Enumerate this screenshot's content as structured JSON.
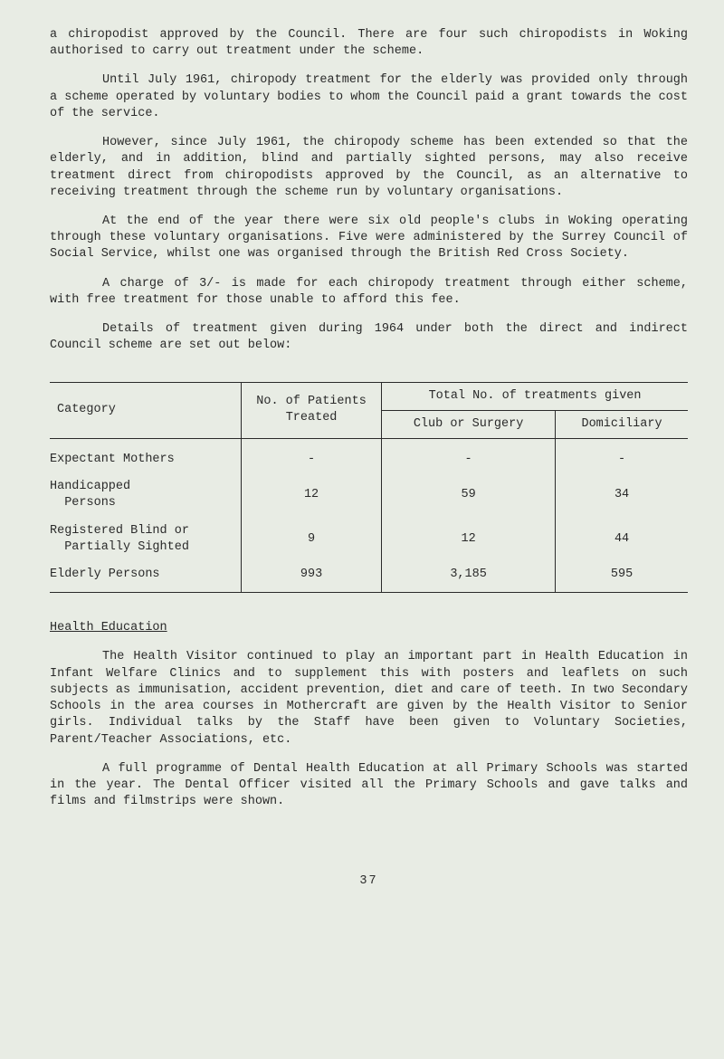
{
  "paragraphs": {
    "p1": "a chiropodist approved by the Council. There are four such chiropodists in Woking authorised to carry out treatment under the scheme.",
    "p2": "Until July 1961, chiropody treatment for the elderly was provided only through a scheme operated by voluntary bodies to whom the Council paid a grant towards the cost of the service.",
    "p3": "However, since July 1961, the chiropody scheme has been extended so that the elderly, and in addition, blind and partially sighted persons, may also receive treatment direct from chiropodists approved by the Council, as an alternative to receiving treatment through the scheme run by voluntary organisations.",
    "p4": "At the end of the year there were six old people's clubs in Woking operating through these voluntary organisations. Five were administered by the Surrey Council of Social Service, whilst one was organised through the British Red Cross Society.",
    "p5": "A charge of 3/- is made for each chiropody treatment through either scheme, with free treatment for those unable to afford this fee.",
    "p6": "Details of treatment given during 1964 under both the direct and indirect Council scheme are set out below:"
  },
  "table": {
    "header_category": "Category",
    "header_patients_l1": "No. of Patients",
    "header_patients_l2": "Treated",
    "header_total": "Total No. of treatments given",
    "header_club": "Club or Surgery",
    "header_dom": "Domiciliary",
    "rows": [
      {
        "cat": "Expectant Mothers",
        "num": "-",
        "cs": "-",
        "dom": "-"
      },
      {
        "cat_l1": "Handicapped",
        "cat_l2": "  Persons",
        "num": "12",
        "cs": "59",
        "dom": "34"
      },
      {
        "cat_l1": "Registered Blind or",
        "cat_l2": "  Partially Sighted",
        "num": "9",
        "cs": "12",
        "dom": "44"
      },
      {
        "cat": "Elderly Persons",
        "num": "993",
        "cs": "3,185",
        "dom": "595"
      }
    ]
  },
  "section_title": "Health Education",
  "paragraphs2": {
    "p7": "The Health Visitor continued to play an important part in Health Education in Infant Welfare Clinics and to supplement this with posters and leaflets on such subjects as immunisation, accident prevention, diet and care of teeth. In two Secondary Schools in the area courses in Mothercraft are given by the Health Visitor to Senior girls. Individual talks by the Staff have been given to Voluntary Societies, Parent/Teacher Associations, etc.",
    "p8": "A full programme of Dental Health Education at all Primary Schools was started in the year. The Dental Officer visited all the Primary Schools and gave talks and films and filmstrips were shown."
  },
  "page_number": "37",
  "colors": {
    "background": "#e8ece4",
    "text": "#2a2a2a",
    "border": "#2a2a2a"
  }
}
